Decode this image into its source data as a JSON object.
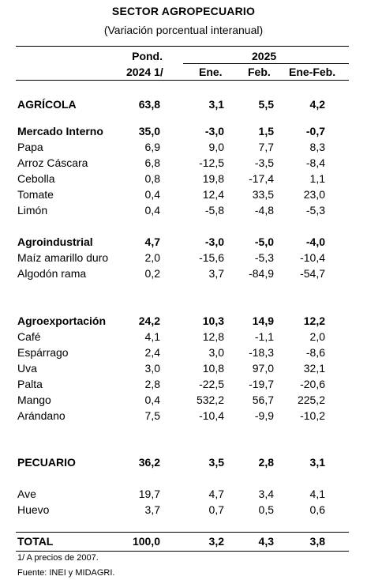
{
  "title": "SECTOR AGROPECUARIO",
  "subtitle": "(Variación porcentual interanual)",
  "headers": {
    "pond_top": "Pond.",
    "pond_bottom": "2024  1/",
    "year": "2025",
    "col_ene": "Ene.",
    "col_feb": "Feb.",
    "col_enefeb": "Ene-Feb."
  },
  "rows": [
    {
      "label": "AGRÍCOLA",
      "pond": "63,8",
      "ene": "3,1",
      "feb": "5,5",
      "enefeb": "4,2",
      "bold": true
    },
    {
      "label": "Mercado Interno",
      "pond": "35,0",
      "ene": "-3,0",
      "feb": "1,5",
      "enefeb": "-0,7",
      "bold": true
    },
    {
      "label": "Papa",
      "pond": "6,9",
      "ene": "9,0",
      "feb": "7,7",
      "enefeb": "8,3",
      "bold": false
    },
    {
      "label": "Arroz Cáscara",
      "pond": "6,8",
      "ene": "-12,5",
      "feb": "-3,5",
      "enefeb": "-8,4",
      "bold": false
    },
    {
      "label": "Cebolla",
      "pond": "0,8",
      "ene": "19,8",
      "feb": "-17,4",
      "enefeb": "1,1",
      "bold": false
    },
    {
      "label": "Tomate",
      "pond": "0,4",
      "ene": "12,4",
      "feb": "33,5",
      "enefeb": "23,0",
      "bold": false
    },
    {
      "label": "Limón",
      "pond": "0,4",
      "ene": "-5,8",
      "feb": "-4,8",
      "enefeb": "-5,3",
      "bold": false
    },
    {
      "label": "Agroindustrial",
      "pond": "4,7",
      "ene": "-3,0",
      "feb": "-5,0",
      "enefeb": "-4,0",
      "bold": true
    },
    {
      "label": "Maíz amarillo duro",
      "pond": "2,0",
      "ene": "-15,6",
      "feb": "-5,3",
      "enefeb": "-10,4",
      "bold": false
    },
    {
      "label": "Algodón rama",
      "pond": "0,2",
      "ene": "3,7",
      "feb": "-84,9",
      "enefeb": "-54,7",
      "bold": false
    },
    {
      "label": "Agroexportación",
      "pond": "24,2",
      "ene": "10,3",
      "feb": "14,9",
      "enefeb": "12,2",
      "bold": true
    },
    {
      "label": "Café",
      "pond": "4,1",
      "ene": "12,8",
      "feb": "-1,1",
      "enefeb": "2,0",
      "bold": false
    },
    {
      "label": "Espárrago",
      "pond": "2,4",
      "ene": "3,0",
      "feb": "-18,3",
      "enefeb": "-8,6",
      "bold": false
    },
    {
      "label": "Uva",
      "pond": "3,0",
      "ene": "10,8",
      "feb": "97,0",
      "enefeb": "32,1",
      "bold": false
    },
    {
      "label": "Palta",
      "pond": "2,8",
      "ene": "-22,5",
      "feb": "-19,7",
      "enefeb": "-20,6",
      "bold": false
    },
    {
      "label": "Mango",
      "pond": "0,4",
      "ene": "532,2",
      "feb": "56,7",
      "enefeb": "225,2",
      "bold": false
    },
    {
      "label": "Arándano",
      "pond": "7,5",
      "ene": "-10,4",
      "feb": "-9,9",
      "enefeb": "-10,2",
      "bold": false
    },
    {
      "label": "PECUARIO",
      "pond": "36,2",
      "ene": "3,5",
      "feb": "2,8",
      "enefeb": "3,1",
      "bold": true
    },
    {
      "label": "Ave",
      "pond": "19,7",
      "ene": "4,7",
      "feb": "3,4",
      "enefeb": "4,1",
      "bold": false
    },
    {
      "label": "Huevo",
      "pond": "3,7",
      "ene": "0,7",
      "feb": "0,5",
      "enefeb": "0,6",
      "bold": false
    },
    {
      "label": "TOTAL",
      "pond": "100,0",
      "ene": "3,2",
      "feb": "4,3",
      "enefeb": "3,8",
      "bold": true
    }
  ],
  "footnotes": {
    "note1": "1/ A precios de 2007.",
    "source": "Fuente: INEI y MIDAGRI."
  }
}
